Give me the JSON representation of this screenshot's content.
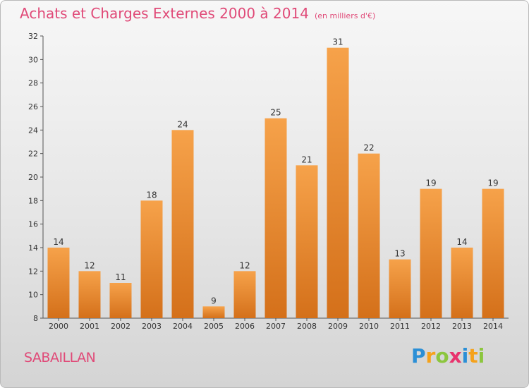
{
  "header": {
    "title": "Achats et Charges Externes 2000 à 2014",
    "unit": "(en milliers d'€)"
  },
  "commune": "SABAILLAN",
  "brand": {
    "letters": [
      "P",
      "r",
      "o",
      "x",
      "i",
      "t",
      "i"
    ],
    "colors": [
      "#2b8fd6",
      "#f5a21b",
      "#8cc63e",
      "#e8336d",
      "#2b8fd6",
      "#f5a21b",
      "#8cc63e"
    ]
  },
  "colors": {
    "bar_light": "#f6a24a",
    "bar_dark": "#d4701a",
    "accent_text": "#e04a78"
  },
  "chart_data": {
    "type": "bar",
    "categories": [
      "2000",
      "2001",
      "2002",
      "2003",
      "2004",
      "2005",
      "2006",
      "2007",
      "2008",
      "2009",
      "2010",
      "2011",
      "2012",
      "2013",
      "2014"
    ],
    "values": [
      14,
      12,
      11,
      18,
      24,
      9,
      12,
      25,
      21,
      31,
      22,
      13,
      19,
      14,
      19
    ],
    "ylim": [
      8,
      32
    ],
    "yticks": [
      8,
      10,
      12,
      14,
      16,
      18,
      20,
      22,
      24,
      26,
      28,
      30,
      32
    ],
    "grid": false
  }
}
